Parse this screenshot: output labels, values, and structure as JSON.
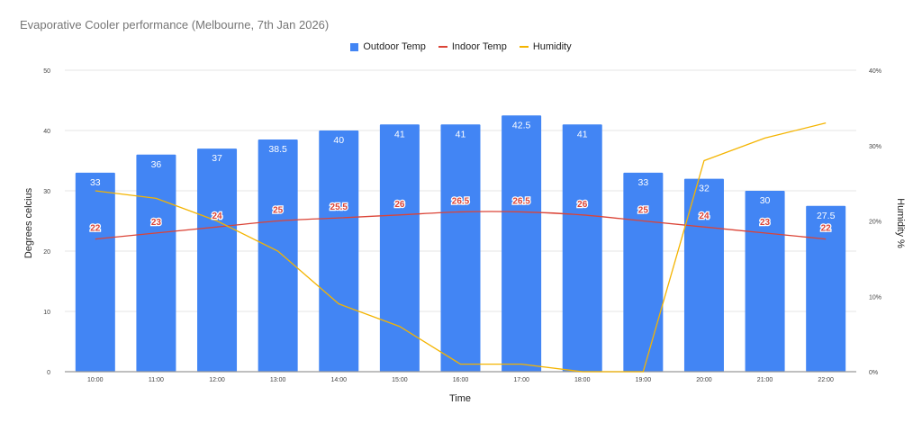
{
  "chart_data": {
    "type": "bar",
    "title": "Evaporative Cooler performance (Melbourne, 7th Jan 2026)",
    "xlabel": "Time",
    "ylabel": "Degrees celcius",
    "y2label": "Humidity %",
    "ylim": [
      0,
      50
    ],
    "y2lim": [
      0,
      40
    ],
    "yticks": [
      "0",
      "10",
      "20",
      "30",
      "40",
      "50"
    ],
    "y2ticks": [
      "0%",
      "10%",
      "20%",
      "30%",
      "40%"
    ],
    "grid": true,
    "legend_position": "top",
    "categories": [
      "10:00",
      "11:00",
      "12:00",
      "13:00",
      "14:00",
      "15:00",
      "16:00",
      "17:00",
      "18:00",
      "19:00",
      "20:00",
      "21:00",
      "22:00"
    ],
    "series": [
      {
        "name": "Outdoor Temp",
        "type": "bar",
        "axis": "left",
        "color": "#4285f4",
        "values": [
          33,
          36,
          37,
          38.5,
          40,
          41,
          41,
          42.5,
          41,
          33,
          32,
          30,
          27.5
        ]
      },
      {
        "name": "Indoor Temp",
        "type": "line",
        "axis": "left",
        "color": "#db4437",
        "smooth": true,
        "values": [
          22,
          23,
          24,
          25,
          25.5,
          26,
          26.5,
          26.5,
          26,
          25,
          24,
          23,
          22
        ]
      },
      {
        "name": "Humidity",
        "type": "line",
        "axis": "right",
        "color": "#f4b400",
        "unit": "%",
        "values": [
          24,
          23,
          20,
          16,
          9,
          6,
          1,
          1,
          0,
          0,
          28,
          31,
          33
        ]
      }
    ]
  },
  "legend": {
    "items": [
      {
        "label": "Outdoor Temp",
        "color": "#4285f4",
        "shape": "box"
      },
      {
        "label": "Indoor Temp",
        "color": "#db4437",
        "shape": "line"
      },
      {
        "label": "Humidity",
        "color": "#f4b400",
        "shape": "line"
      }
    ]
  }
}
